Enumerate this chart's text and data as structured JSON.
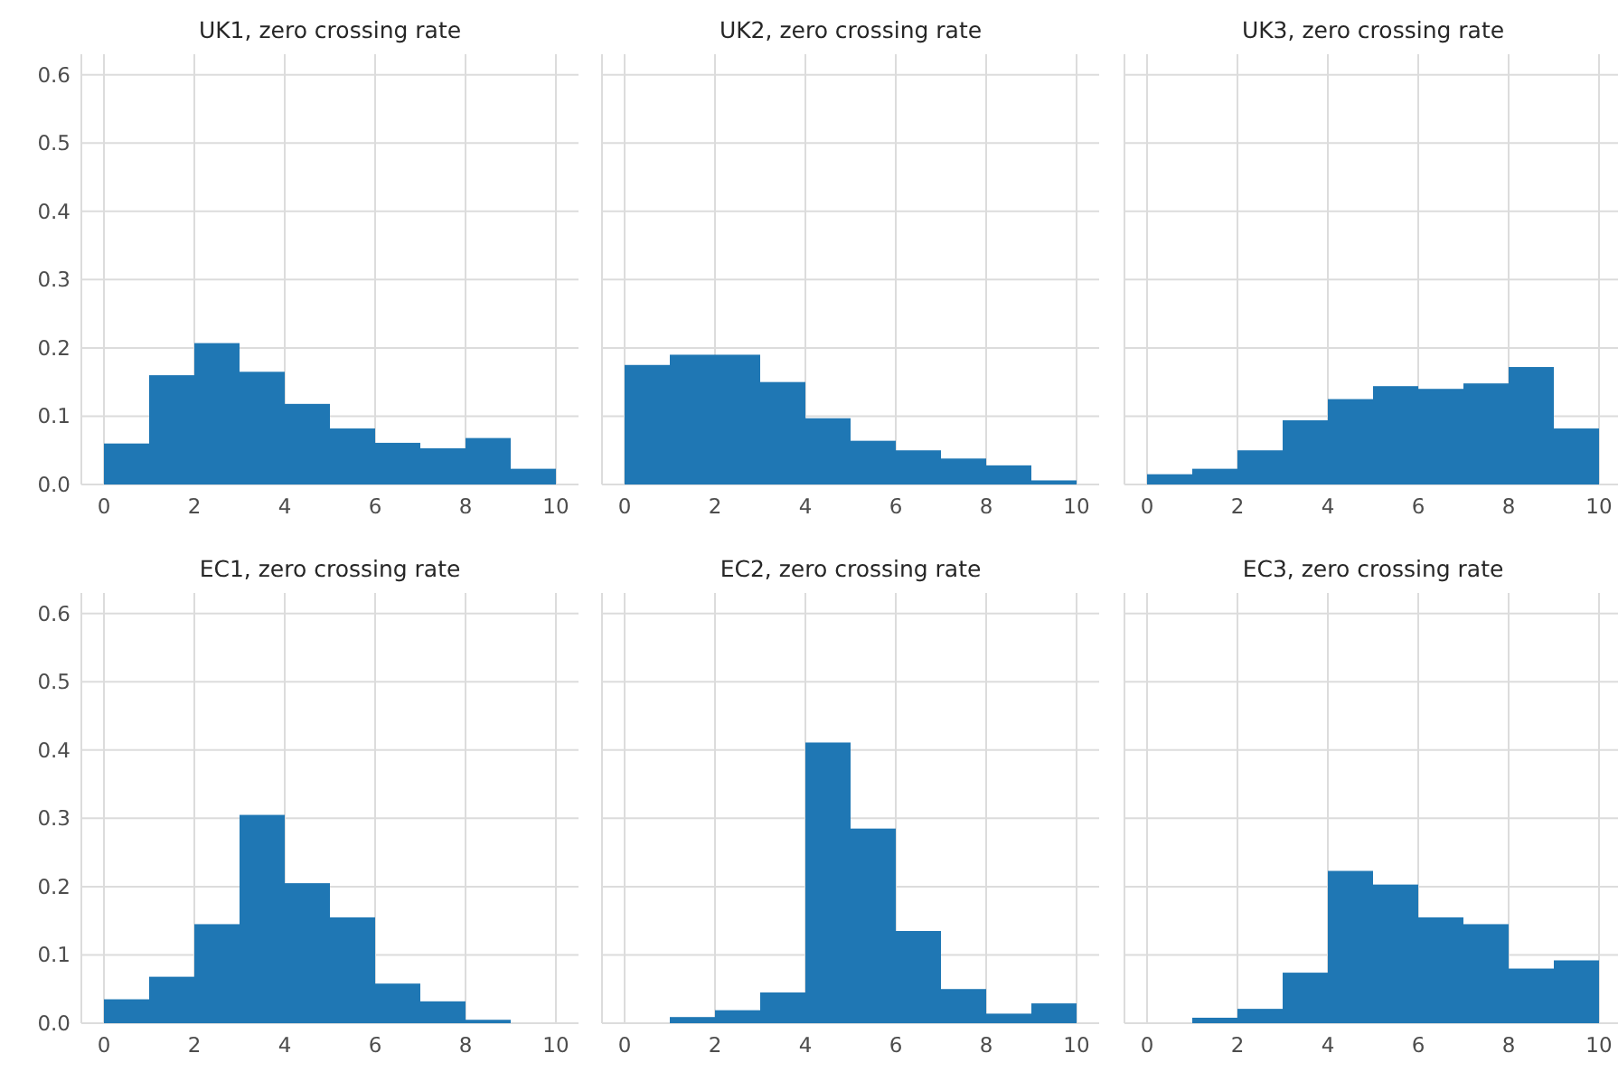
{
  "chart_data": [
    {
      "type": "histogram",
      "title": "UK1, zero crossing rate",
      "bins": [
        0,
        1,
        2,
        3,
        4,
        5,
        6,
        7,
        8,
        9,
        10
      ],
      "values": [
        0.06,
        0.16,
        0.207,
        0.165,
        0.118,
        0.082,
        0.061,
        0.053,
        0.068,
        0.023
      ],
      "color": "#1f77b4",
      "xlim": [
        -0.5,
        10.5
      ],
      "xticks": [
        0,
        2,
        4,
        6,
        8,
        10
      ],
      "ylim": [
        0,
        0.63
      ],
      "yticks": [
        {
          "value": 0,
          "label": "0.0"
        },
        0.1,
        0.2,
        0.3,
        0.4,
        0.5,
        0.6
      ],
      "grid": true
    },
    {
      "type": "histogram",
      "title": "UK2, zero crossing rate",
      "bins": [
        0,
        1,
        2,
        3,
        4,
        5,
        6,
        7,
        8,
        9,
        10
      ],
      "values": [
        0.175,
        0.19,
        0.19,
        0.15,
        0.097,
        0.064,
        0.05,
        0.038,
        0.028,
        0.006
      ],
      "color": "#1f77b4",
      "xlim": [
        -0.5,
        10.5
      ],
      "xticks": [
        0,
        2,
        4,
        6,
        8,
        10
      ],
      "ylim": [
        0,
        0.63
      ],
      "yticks": [
        0,
        0.1,
        0.2,
        0.3,
        0.4,
        0.5,
        0.6
      ],
      "grid": true,
      "tick_labels": "x"
    },
    {
      "type": "histogram",
      "title": "UK3, zero crossing rate",
      "bins": [
        0,
        1,
        2,
        3,
        4,
        5,
        6,
        7,
        8,
        9,
        10
      ],
      "values": [
        0.015,
        0.023,
        0.05,
        0.094,
        0.125,
        0.144,
        0.14,
        0.148,
        0.172,
        0.082
      ],
      "color": "#1f77b4",
      "xlim": [
        -0.5,
        10.5
      ],
      "xticks": [
        0,
        2,
        4,
        6,
        8,
        10
      ],
      "ylim": [
        0,
        0.63
      ],
      "yticks": [
        0,
        0.1,
        0.2,
        0.3,
        0.4,
        0.5,
        0.6
      ],
      "grid": true,
      "tick_labels": "x"
    },
    {
      "type": "histogram",
      "title": "EC1, zero crossing rate",
      "bins": [
        0,
        1,
        2,
        3,
        4,
        5,
        6,
        7,
        8,
        9,
        10
      ],
      "values": [
        0.035,
        0.068,
        0.145,
        0.305,
        0.205,
        0.155,
        0.058,
        0.032,
        0.005,
        0
      ],
      "color": "#1f77b4",
      "xlim": [
        -0.5,
        10.5
      ],
      "xticks": [
        0,
        2,
        4,
        6,
        8,
        10
      ],
      "ylim": [
        0,
        0.63
      ],
      "yticks": [
        {
          "value": 0,
          "label": "0.0"
        },
        0.1,
        0.2,
        0.3,
        0.4,
        0.5,
        0.6
      ],
      "grid": true
    },
    {
      "type": "histogram",
      "title": "EC2, zero crossing rate",
      "bins": [
        0,
        1,
        2,
        3,
        4,
        5,
        6,
        7,
        8,
        9,
        10
      ],
      "values": [
        0,
        0.009,
        0.019,
        0.045,
        0.411,
        0.285,
        0.135,
        0.05,
        0.014,
        0.029
      ],
      "color": "#1f77b4",
      "xlim": [
        -0.5,
        10.5
      ],
      "xticks": [
        0,
        2,
        4,
        6,
        8,
        10
      ],
      "ylim": [
        0,
        0.63
      ],
      "yticks": [
        0,
        0.1,
        0.2,
        0.3,
        0.4,
        0.5,
        0.6
      ],
      "grid": true,
      "tick_labels": "x"
    },
    {
      "type": "histogram",
      "title": "EC3, zero crossing rate",
      "bins": [
        0,
        1,
        2,
        3,
        4,
        5,
        6,
        7,
        8,
        9,
        10
      ],
      "values": [
        0,
        0.008,
        0.021,
        0.074,
        0.223,
        0.203,
        0.155,
        0.145,
        0.08,
        0.092
      ],
      "color": "#1f77b4",
      "xlim": [
        -0.5,
        10.5
      ],
      "xticks": [
        0,
        2,
        4,
        6,
        8,
        10
      ],
      "ylim": [
        0,
        0.63
      ],
      "yticks": [
        0,
        0.1,
        0.2,
        0.3,
        0.4,
        0.5,
        0.6
      ],
      "grid": true,
      "tick_labels": "x"
    }
  ]
}
